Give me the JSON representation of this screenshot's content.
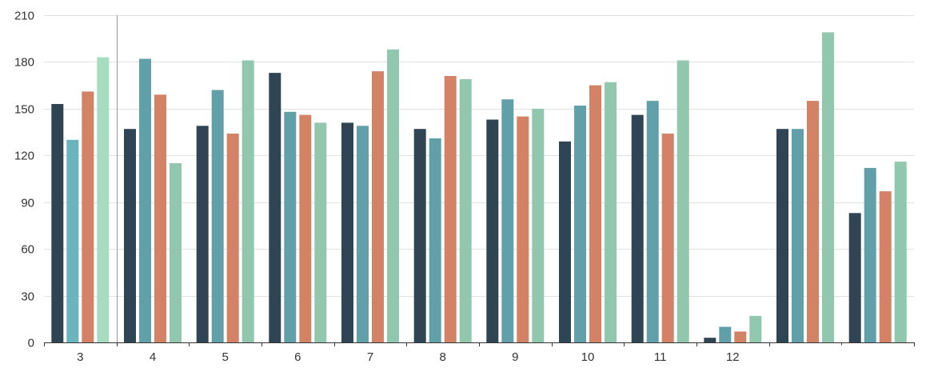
{
  "chart_data": {
    "type": "bar",
    "title": "",
    "xlabel": "",
    "ylabel": "",
    "ylim": [
      0,
      210
    ],
    "yticks": [
      0,
      30,
      60,
      90,
      120,
      150,
      180,
      210
    ],
    "categories": [
      "3",
      "4",
      "5",
      "6",
      "7",
      "8",
      "9",
      "10",
      "11",
      "12",
      "",
      ""
    ],
    "grid": true,
    "legend": "none",
    "colors": [
      "#2f4554",
      "#61a0a8",
      "#d48265",
      "#91c7ae"
    ],
    "highlight_color": "#a7dcc0",
    "pointer_category_index": 0,
    "series": [
      {
        "values": [
          153,
          137,
          139,
          173,
          141,
          137,
          143,
          129,
          146,
          3,
          137,
          83
        ]
      },
      {
        "values": [
          130,
          182,
          162,
          148,
          139,
          131,
          156,
          152,
          155,
          10,
          137,
          112
        ]
      },
      {
        "values": [
          161,
          159,
          134,
          146,
          174,
          171,
          145,
          165,
          134,
          7,
          155,
          97
        ]
      },
      {
        "values": [
          183,
          115,
          181,
          141,
          188,
          169,
          150,
          167,
          181,
          17,
          199,
          116
        ]
      }
    ]
  }
}
